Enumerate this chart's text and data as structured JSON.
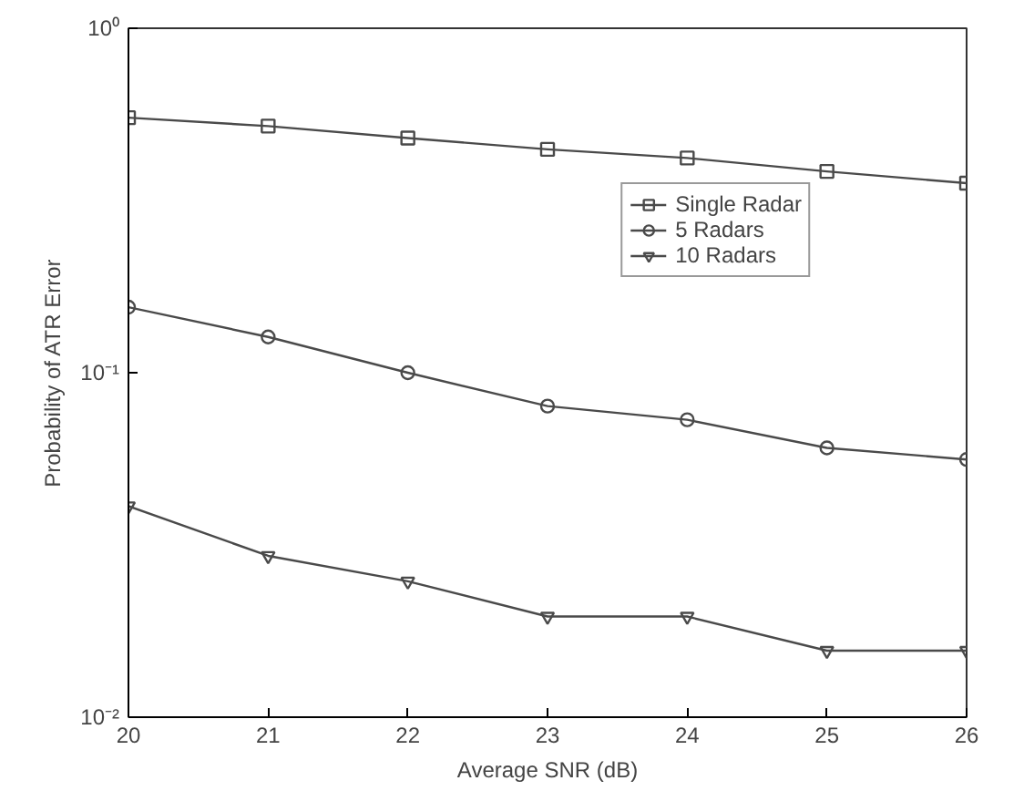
{
  "chart_data": {
    "type": "line",
    "xlabel": "Average SNR (dB)",
    "ylabel": "Probability of ATR Error",
    "x": [
      20,
      21,
      22,
      23,
      24,
      25,
      26
    ],
    "series": [
      {
        "name": "Single Radar",
        "color": "#4a4a4a",
        "marker": "square",
        "values": [
          0.55,
          0.52,
          0.48,
          0.445,
          0.42,
          0.384,
          0.355
        ]
      },
      {
        "name": "5 Radars",
        "color": "#4a4a4a",
        "marker": "circle",
        "values": [
          0.155,
          0.127,
          0.1,
          0.08,
          0.073,
          0.0605,
          0.056
        ]
      },
      {
        "name": "10 Radars",
        "color": "#4a4a4a",
        "marker": "triangle",
        "values": [
          0.041,
          0.0294,
          0.0248,
          0.0196,
          0.0196,
          0.0156,
          0.0156
        ]
      }
    ],
    "xlim": [
      20,
      26
    ],
    "xticks": [
      20,
      21,
      22,
      23,
      24,
      25,
      26
    ],
    "ylim": [
      0.01,
      1
    ],
    "yticks": [
      {
        "value": 0.01,
        "label": "10⁻²"
      },
      {
        "value": 0.1,
        "label": "10⁻¹"
      },
      {
        "value": 1,
        "label": "10⁰"
      }
    ],
    "log": "y",
    "grid": false,
    "legend": "top right",
    "line_style": "solid"
  }
}
